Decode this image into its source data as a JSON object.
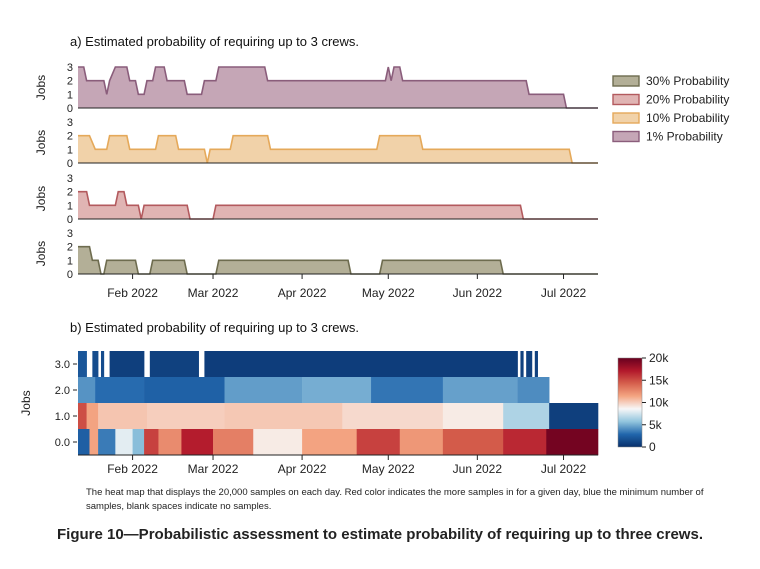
{
  "figure_caption": "Figure 10—Probabilistic assessment to estimate probability of requiring up to three crews.",
  "note": "The heat map that displays the 20,000 samples on each day. Red color indicates the more samples in for a given day, blue the minimum number of samples, blank spaces indicate no samples.",
  "colors": {
    "p30_fill": "#b3af97",
    "p30_line": "#6e6c4f",
    "p20_fill": "#e0b4b3",
    "p20_line": "#b35a5e",
    "p10_fill": "#f1d2a9",
    "p10_line": "#e5a95a",
    "p1_fill": "#c5a6b6",
    "p1_line": "#8a5d7b"
  },
  "chart_data": [
    {
      "type": "area",
      "title": "a) Estimated probability of requiring up to 3 crews.",
      "ylabel": "Jobs",
      "yticks": [
        "0",
        "1",
        "2",
        "3"
      ],
      "ylim": [
        0,
        3
      ],
      "x_ticks": [
        "Feb 2022",
        "Mar 2022",
        "Apr 2022",
        "May 2022",
        "Jun 2022",
        "Jul 2022"
      ],
      "x_tick_dates": [
        "2022-02-01",
        "2022-03-01",
        "2022-04-01",
        "2022-05-01",
        "2022-06-01",
        "2022-07-01"
      ],
      "xlim": [
        "2022-01-13",
        "2022-07-13"
      ],
      "legend_position": "right",
      "legend": [
        {
          "name": "30% Probability",
          "key": "p30"
        },
        {
          "name": "20% Probability",
          "key": "p20"
        },
        {
          "name": "10% Probability",
          "key": "p10"
        },
        {
          "name": "1% Probability",
          "key": "p1"
        }
      ],
      "series": [
        {
          "name": "1% Probability",
          "key": "p1",
          "values": [
            [
              "2022-01-13",
              3
            ],
            [
              "2022-01-15",
              3
            ],
            [
              "2022-01-16",
              2
            ],
            [
              "2022-01-22",
              2
            ],
            [
              "2022-01-23",
              1
            ],
            [
              "2022-01-24",
              2
            ],
            [
              "2022-01-26",
              3
            ],
            [
              "2022-01-30",
              3
            ],
            [
              "2022-01-31",
              2
            ],
            [
              "2022-02-02",
              2
            ],
            [
              "2022-02-03",
              1
            ],
            [
              "2022-02-05",
              1
            ],
            [
              "2022-02-06",
              2
            ],
            [
              "2022-02-08",
              2
            ],
            [
              "2022-02-09",
              3
            ],
            [
              "2022-02-12",
              3
            ],
            [
              "2022-02-13",
              2
            ],
            [
              "2022-02-19",
              2
            ],
            [
              "2022-02-20",
              1
            ],
            [
              "2022-02-25",
              1
            ],
            [
              "2022-02-26",
              2
            ],
            [
              "2022-03-02",
              2
            ],
            [
              "2022-03-03",
              3
            ],
            [
              "2022-03-19",
              3
            ],
            [
              "2022-03-20",
              2
            ],
            [
              "2022-04-30",
              2
            ],
            [
              "2022-05-01",
              3
            ],
            [
              "2022-05-02",
              2
            ],
            [
              "2022-05-03",
              3
            ],
            [
              "2022-05-05",
              3
            ],
            [
              "2022-05-06",
              2
            ],
            [
              "2022-06-18",
              2
            ],
            [
              "2022-06-19",
              1
            ],
            [
              "2022-07-01",
              1
            ],
            [
              "2022-07-02",
              0
            ],
            [
              "2022-07-13",
              0
            ]
          ]
        },
        {
          "name": "10% Probability",
          "key": "p10",
          "values": [
            [
              "2022-01-13",
              2
            ],
            [
              "2022-01-17",
              2
            ],
            [
              "2022-01-19",
              1
            ],
            [
              "2022-01-23",
              1
            ],
            [
              "2022-01-24",
              2
            ],
            [
              "2022-01-30",
              2
            ],
            [
              "2022-01-31",
              1
            ],
            [
              "2022-02-09",
              1
            ],
            [
              "2022-02-10",
              2
            ],
            [
              "2022-02-16",
              2
            ],
            [
              "2022-02-17",
              1
            ],
            [
              "2022-02-26",
              1
            ],
            [
              "2022-02-27",
              0
            ],
            [
              "2022-02-28",
              1
            ],
            [
              "2022-03-07",
              1
            ],
            [
              "2022-03-08",
              2
            ],
            [
              "2022-03-20",
              2
            ],
            [
              "2022-03-21",
              1
            ],
            [
              "2022-04-27",
              1
            ],
            [
              "2022-04-28",
              2
            ],
            [
              "2022-05-12",
              2
            ],
            [
              "2022-05-13",
              1
            ],
            [
              "2022-07-03",
              1
            ],
            [
              "2022-07-04",
              0
            ],
            [
              "2022-07-13",
              0
            ]
          ]
        },
        {
          "name": "20% Probability",
          "key": "p20",
          "values": [
            [
              "2022-01-13",
              2
            ],
            [
              "2022-01-16",
              2
            ],
            [
              "2022-01-17",
              1
            ],
            [
              "2022-01-26",
              1
            ],
            [
              "2022-01-27",
              2
            ],
            [
              "2022-01-29",
              2
            ],
            [
              "2022-01-30",
              1
            ],
            [
              "2022-02-03",
              1
            ],
            [
              "2022-02-04",
              0
            ],
            [
              "2022-02-05",
              1
            ],
            [
              "2022-02-20",
              1
            ],
            [
              "2022-02-21",
              0
            ],
            [
              "2022-03-01",
              0
            ],
            [
              "2022-03-02",
              1
            ],
            [
              "2022-06-16",
              1
            ],
            [
              "2022-06-17",
              0
            ],
            [
              "2022-07-13",
              0
            ]
          ]
        },
        {
          "name": "30% Probability",
          "key": "p30",
          "values": [
            [
              "2022-01-13",
              2
            ],
            [
              "2022-01-17",
              2
            ],
            [
              "2022-01-18",
              1
            ],
            [
              "2022-01-20",
              1
            ],
            [
              "2022-01-21",
              0
            ],
            [
              "2022-01-22",
              0
            ],
            [
              "2022-01-23",
              1
            ],
            [
              "2022-02-02",
              1
            ],
            [
              "2022-02-03",
              0
            ],
            [
              "2022-02-07",
              0
            ],
            [
              "2022-02-08",
              1
            ],
            [
              "2022-02-19",
              1
            ],
            [
              "2022-02-20",
              0
            ],
            [
              "2022-03-02",
              0
            ],
            [
              "2022-03-03",
              1
            ],
            [
              "2022-04-17",
              1
            ],
            [
              "2022-04-18",
              0
            ],
            [
              "2022-04-28",
              0
            ],
            [
              "2022-04-29",
              1
            ],
            [
              "2022-06-09",
              1
            ],
            [
              "2022-06-10",
              0
            ],
            [
              "2022-07-13",
              0
            ]
          ]
        }
      ]
    },
    {
      "type": "heatmap",
      "title": "b) Estimated probability of requiring up to 3 crews.",
      "ylabel": "Jobs",
      "y_categories": [
        "0.0",
        "1.0",
        "2.0",
        "3.0"
      ],
      "x_ticks": [
        "Feb 2022",
        "Mar 2022",
        "Apr 2022",
        "May 2022",
        "Jun 2022",
        "Jul 2022"
      ],
      "x_tick_dates": [
        "2022-02-01",
        "2022-03-01",
        "2022-04-01",
        "2022-05-01",
        "2022-06-01",
        "2022-07-01"
      ],
      "xlim": [
        "2022-01-13",
        "2022-07-13"
      ],
      "colorbar": {
        "min": 0,
        "max": 20000,
        "ticks": [
          "0",
          "5k",
          "10k",
          "15k",
          "20k"
        ],
        "colors": [
          "#08306b",
          "#2166ac",
          "#92c5de",
          "#f7f7f7",
          "#f4a582",
          "#d6604d",
          "#b2182b",
          "#67001f"
        ]
      },
      "rows": [
        {
          "label": "3.0",
          "segments": [
            [
              "2022-01-13",
              "2022-01-16",
              2000
            ],
            [
              "2022-01-18",
              "2022-01-20",
              1500
            ],
            [
              "2022-01-21",
              "2022-01-22",
              1500
            ],
            [
              "2022-01-24",
              "2022-02-05",
              800
            ],
            [
              "2022-02-07",
              "2022-02-24",
              900
            ],
            [
              "2022-02-26",
              "2022-06-15",
              700
            ],
            [
              "2022-06-16",
              "2022-06-17",
              900
            ],
            [
              "2022-06-18",
              "2022-06-20",
              900
            ],
            [
              "2022-06-21",
              "2022-06-22",
              900
            ]
          ]
        },
        {
          "label": "2.0",
          "segments": [
            [
              "2022-01-13",
              "2022-01-19",
              4200
            ],
            [
              "2022-01-19",
              "2022-02-05",
              3000
            ],
            [
              "2022-02-05",
              "2022-03-05",
              2600
            ],
            [
              "2022-03-05",
              "2022-04-01",
              4500
            ],
            [
              "2022-04-01",
              "2022-04-25",
              5000
            ],
            [
              "2022-04-25",
              "2022-05-20",
              3300
            ],
            [
              "2022-05-20",
              "2022-06-15",
              4600
            ],
            [
              "2022-06-15",
              "2022-06-26",
              4000
            ]
          ]
        },
        {
          "label": "1.0",
          "segments": [
            [
              "2022-01-13",
              "2022-01-16",
              15000
            ],
            [
              "2022-01-16",
              "2022-01-20",
              11500
            ],
            [
              "2022-01-20",
              "2022-02-06",
              10300
            ],
            [
              "2022-02-06",
              "2022-03-05",
              10000
            ],
            [
              "2022-03-05",
              "2022-04-15",
              10200
            ],
            [
              "2022-04-15",
              "2022-05-20",
              9600
            ],
            [
              "2022-05-20",
              "2022-06-10",
              9000
            ],
            [
              "2022-06-10",
              "2022-06-26",
              6500
            ],
            [
              "2022-06-26",
              "2022-07-13",
              800
            ]
          ]
        },
        {
          "label": "0.0",
          "segments": [
            [
              "2022-01-13",
              "2022-01-17",
              2500
            ],
            [
              "2022-01-17",
              "2022-01-20",
              11500
            ],
            [
              "2022-01-20",
              "2022-01-26",
              3500
            ],
            [
              "2022-01-26",
              "2022-02-01",
              8000
            ],
            [
              "2022-02-01",
              "2022-02-05",
              5500
            ],
            [
              "2022-02-05",
              "2022-02-10",
              15500
            ],
            [
              "2022-02-10",
              "2022-02-18",
              12500
            ],
            [
              "2022-02-18",
              "2022-03-01",
              17000
            ],
            [
              "2022-03-01",
              "2022-03-15",
              13000
            ],
            [
              "2022-03-15",
              "2022-04-01",
              9000
            ],
            [
              "2022-04-01",
              "2022-04-20",
              11500
            ],
            [
              "2022-04-20",
              "2022-05-05",
              15500
            ],
            [
              "2022-05-05",
              "2022-05-20",
              12000
            ],
            [
              "2022-05-20",
              "2022-06-10",
              14500
            ],
            [
              "2022-06-10",
              "2022-06-25",
              16500
            ],
            [
              "2022-06-25",
              "2022-07-13",
              19500
            ]
          ]
        }
      ]
    }
  ]
}
